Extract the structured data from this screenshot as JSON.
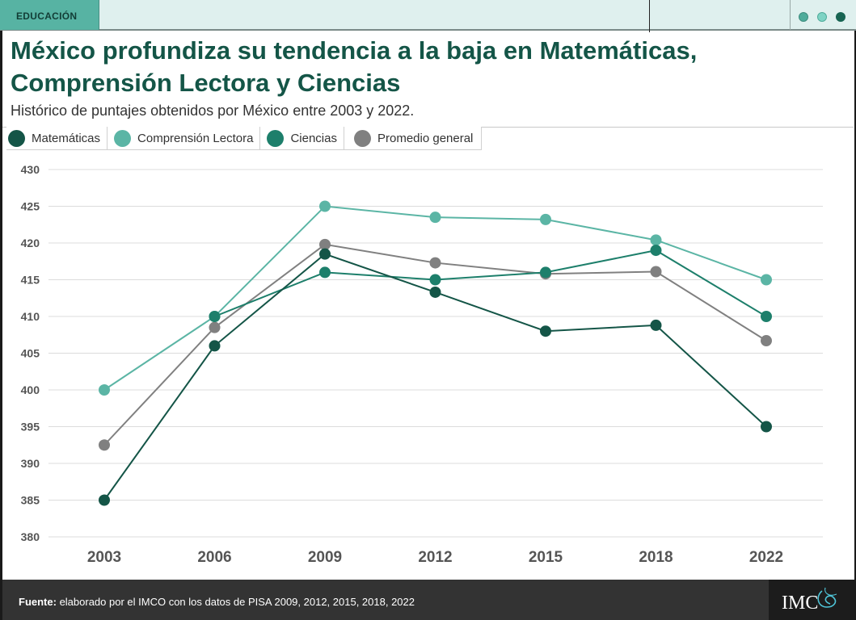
{
  "header": {
    "section_tag": "EDUCACIÓN",
    "title_line1": "México profundiza su tendencia a la baja en Matemáticas,",
    "title_line2": "Comprensión Lectora y Ciencias",
    "subtitle": "Histórico de puntajes obtenidos por México entre 2003 y 2022."
  },
  "colors": {
    "matematicas": "#145547",
    "lectora": "#5bb5a5",
    "ciencias": "#1d7f6b",
    "promedio": "#808080",
    "accent": "#57b3a3"
  },
  "chart_data": {
    "type": "line",
    "title": "México profundiza su tendencia a la baja en Matemáticas, Comprensión Lectora y Ciencias",
    "subtitle": "Histórico de puntajes obtenidos por México entre 2003 y 2022.",
    "xlabel": "",
    "ylabel": "",
    "categories": [
      "2003",
      "2006",
      "2009",
      "2012",
      "2015",
      "2018",
      "2022"
    ],
    "ylim": [
      380,
      430
    ],
    "yticks": [
      "380",
      "385",
      "390",
      "395",
      "400",
      "405",
      "410",
      "415",
      "420",
      "425",
      "430"
    ],
    "grid": true,
    "legend_position": "top-left",
    "series": [
      {
        "name": "Matemáticas",
        "key": "matematicas",
        "values": [
          385,
          406,
          418.5,
          413.3,
          408,
          408.8,
          395
        ]
      },
      {
        "name": "Comprensión Lectora",
        "key": "lectora",
        "values": [
          400,
          410,
          425,
          423.5,
          423.2,
          420.4,
          415
        ]
      },
      {
        "name": "Ciencias",
        "key": "ciencias",
        "values": [
          null,
          410,
          416,
          415,
          416,
          419,
          410
        ]
      },
      {
        "name": "Promedio general",
        "key": "promedio",
        "values": [
          392.5,
          408.5,
          419.8,
          417.3,
          415.8,
          416.1,
          406.7
        ]
      }
    ]
  },
  "footer": {
    "source_label": "Fuente:",
    "source_text": " elaborado por el IMCO con los datos de  PISA 2009, 2012, 2015, 2018, 2022",
    "logo_text": "IMCO"
  }
}
